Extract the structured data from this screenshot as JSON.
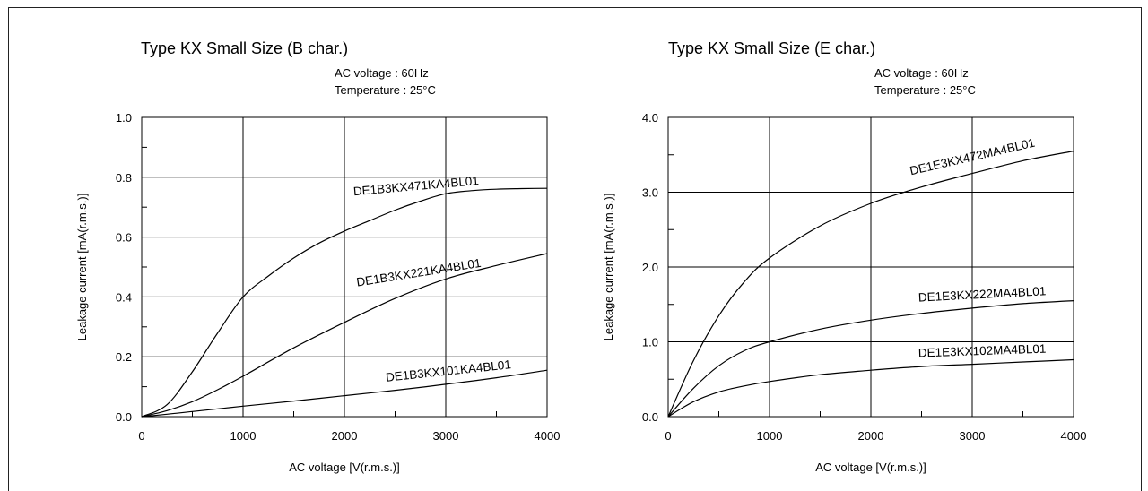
{
  "chart_data": [
    {
      "type": "line",
      "title": "Type KX Small Size (B char.)",
      "conditions": [
        "AC voltage   : 60Hz",
        "Temperature : 25°C"
      ],
      "xlabel": "AC voltage [V(r.m.s.)]",
      "ylabel": "Leakage current [mA(r.m.s.)]",
      "xlim": [
        0,
        4000
      ],
      "ylim": [
        0,
        1.0
      ],
      "x_ticks": [
        0,
        1000,
        2000,
        3000,
        4000
      ],
      "x_tick_labels": [
        "0",
        "1000",
        "2000",
        "3000",
        "4000"
      ],
      "y_ticks": [
        0,
        0.2,
        0.4,
        0.6,
        0.8,
        1.0
      ],
      "y_tick_labels": [
        "0.0",
        "0.2",
        "0.4",
        "0.6",
        "0.8",
        "1.0"
      ],
      "grid": true,
      "series": [
        {
          "name": "DE1B3KX471KA4BL01",
          "x": [
            0,
            250,
            500,
            750,
            1000,
            1250,
            1500,
            1750,
            2000,
            2250,
            2500,
            2750,
            3000,
            3250,
            3500,
            3750,
            4000
          ],
          "y": [
            0,
            0.04,
            0.15,
            0.28,
            0.4,
            0.47,
            0.53,
            0.58,
            0.62,
            0.655,
            0.69,
            0.72,
            0.745,
            0.755,
            0.76,
            0.762,
            0.763
          ]
        },
        {
          "name": "DE1B3KX221KA4BL01",
          "x": [
            0,
            250,
            500,
            750,
            1000,
            1500,
            2000,
            2500,
            3000,
            3500,
            4000
          ],
          "y": [
            0,
            0.02,
            0.05,
            0.09,
            0.135,
            0.23,
            0.315,
            0.395,
            0.46,
            0.505,
            0.545
          ]
        },
        {
          "name": "DE1B3KX101KA4BL01",
          "x": [
            0,
            250,
            500,
            1000,
            1500,
            2000,
            2500,
            3000,
            3500,
            4000
          ],
          "y": [
            0,
            0.008,
            0.017,
            0.035,
            0.052,
            0.07,
            0.088,
            0.108,
            0.13,
            0.155
          ]
        }
      ]
    },
    {
      "type": "line",
      "title": "Type KX Small Size (E char.)",
      "conditions": [
        "AC voltage   : 60Hz",
        "Temperature : 25°C"
      ],
      "xlabel": "AC voltage [V(r.m.s.)]",
      "ylabel": "Leakage current [mA(r.m.s.)]",
      "xlim": [
        0,
        4000
      ],
      "ylim": [
        0,
        4.0
      ],
      "x_ticks": [
        0,
        1000,
        2000,
        3000,
        4000
      ],
      "x_tick_labels": [
        "0",
        "1000",
        "2000",
        "3000",
        "4000"
      ],
      "y_ticks": [
        0,
        1.0,
        2.0,
        3.0,
        4.0
      ],
      "y_tick_labels": [
        "0.0",
        "1.0",
        "2.0",
        "3.0",
        "4.0"
      ],
      "grid": true,
      "series": [
        {
          "name": "DE1E3KX472MA4BL01",
          "x": [
            0,
            250,
            500,
            750,
            1000,
            1500,
            2000,
            2500,
            3000,
            3500,
            4000
          ],
          "y": [
            0,
            0.75,
            1.35,
            1.8,
            2.12,
            2.55,
            2.85,
            3.07,
            3.25,
            3.42,
            3.55
          ]
        },
        {
          "name": "DE1E3KX222MA4BL01",
          "x": [
            0,
            250,
            500,
            750,
            1000,
            1500,
            2000,
            2500,
            3000,
            3500,
            4000
          ],
          "y": [
            0,
            0.38,
            0.68,
            0.88,
            1.0,
            1.17,
            1.29,
            1.38,
            1.45,
            1.51,
            1.55
          ]
        },
        {
          "name": "DE1E3KX102MA4BL01",
          "x": [
            0,
            250,
            500,
            750,
            1000,
            1500,
            2000,
            2500,
            3000,
            3500,
            4000
          ],
          "y": [
            0,
            0.2,
            0.33,
            0.41,
            0.47,
            0.56,
            0.62,
            0.67,
            0.7,
            0.73,
            0.76
          ]
        }
      ]
    }
  ]
}
